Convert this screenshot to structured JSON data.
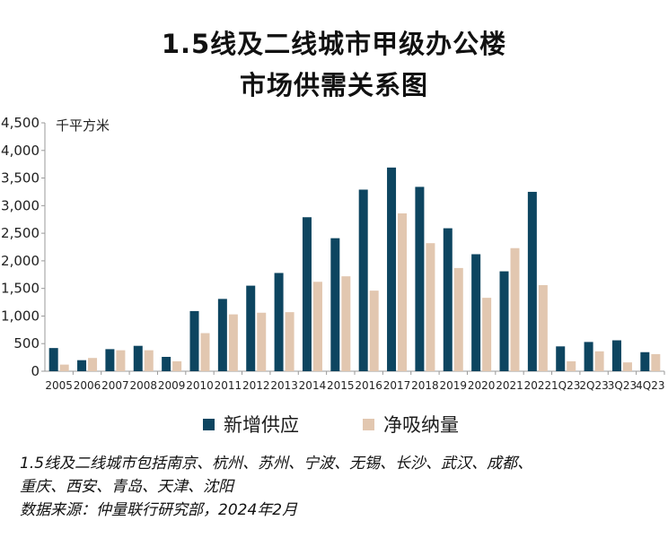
{
  "title_line1": "1.5线及二线城市甲级办公楼",
  "title_line2": "市场供需关系图",
  "colors": {
    "supply": "#0d4560",
    "absorption": "#e2c7b0",
    "axis": "#999999"
  },
  "chart_data": {
    "type": "bar",
    "categories": [
      "2005",
      "2006",
      "2007",
      "2008",
      "2009",
      "2010",
      "2011",
      "2012",
      "2013",
      "2014",
      "2015",
      "2016",
      "2017",
      "2018",
      "2019",
      "2020",
      "2021",
      "2022",
      "1Q23",
      "2Q23",
      "3Q23",
      "4Q23"
    ],
    "series": [
      {
        "name": "新增供应",
        "values": [
          420,
          200,
          400,
          460,
          260,
          1090,
          1310,
          1550,
          1780,
          2790,
          2410,
          3290,
          3690,
          3340,
          2590,
          2120,
          1810,
          3250,
          450,
          530,
          560,
          345
        ]
      },
      {
        "name": "净吸纳量",
        "values": [
          120,
          240,
          380,
          380,
          180,
          690,
          1030,
          1060,
          1070,
          1620,
          1720,
          1460,
          2860,
          2320,
          1870,
          1330,
          2230,
          1560,
          180,
          360,
          160,
          310
        ]
      }
    ],
    "ylim": [
      0,
      4500
    ],
    "yticks": [
      "0",
      "500",
      "1,000",
      "1,500",
      "2,000",
      "2,500",
      "3,000",
      "3,500",
      "4,000",
      "4,500"
    ],
    "ylabel": "千平方米",
    "legend_position": "bottom",
    "grid": false
  },
  "notes": [
    "1.5线及二线城市包括南京、杭州、苏州、宁波、无锡、长沙、武汉、成都、",
    "重庆、西安、青岛、天津、沈阳",
    "数据来源：仲量联行研究部，2024年2月"
  ]
}
